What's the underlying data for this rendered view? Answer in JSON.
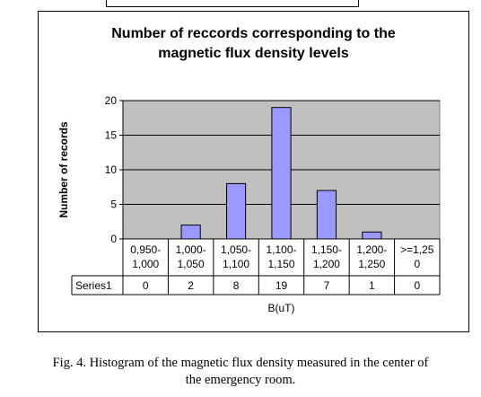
{
  "chart_data": {
    "type": "bar",
    "title_line1": "Number of reccords corresponding to the",
    "title_line2": "magnetic flux density levels",
    "ylabel": "Number of records",
    "xlabel": "B(uT)",
    "ylim": [
      0,
      20
    ],
    "yticks": [
      "0",
      "5",
      "10",
      "15",
      "20"
    ],
    "grid": true,
    "categories": [
      [
        "0,950-",
        "1,000"
      ],
      [
        "1,000-",
        "1,050"
      ],
      [
        "1,050-",
        "1,100"
      ],
      [
        "1,100-",
        "1,150"
      ],
      [
        "1,150-",
        "1,200"
      ],
      [
        "1,200-",
        "1,250"
      ],
      [
        ">=1,25",
        "0"
      ]
    ],
    "series": [
      {
        "name": "Series1",
        "values": [
          0,
          2,
          8,
          19,
          7,
          1,
          0
        ]
      }
    ],
    "data_table": true,
    "colors": {
      "bar_fill": "#9999ff",
      "plot_bg": "#c0c0c0",
      "bar_stroke": "#000000"
    }
  },
  "caption": {
    "line1": "Fig. 4. Histogram of the magnetic flux density measured in the center of",
    "line2": "the emergency room."
  }
}
